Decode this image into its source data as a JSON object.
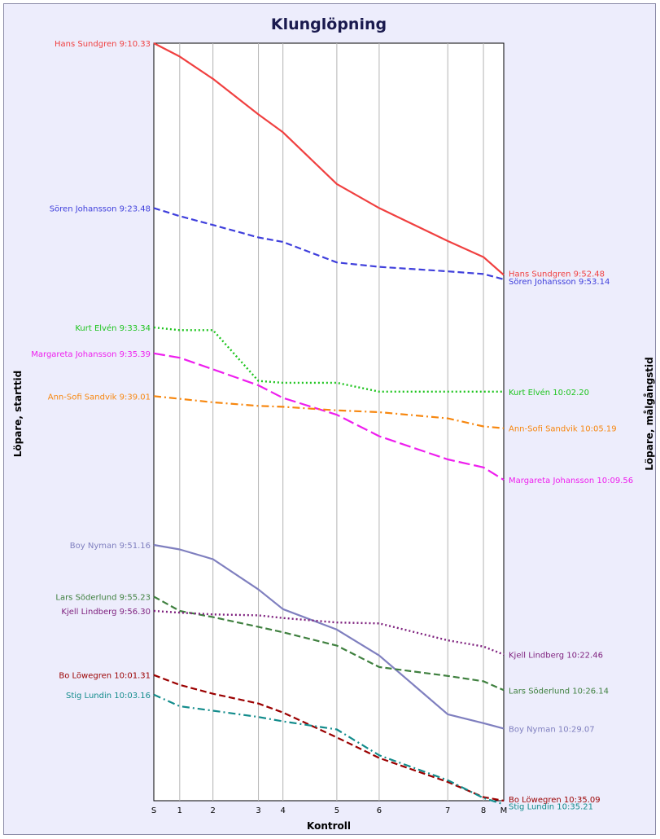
{
  "chart_data": {
    "type": "line",
    "title": "Klunglöpning",
    "xlabel": "Kontroll",
    "ylabel_left": "Löpare, starttid",
    "ylabel_right": "Löpare, målgångstid",
    "ylim_minutes_after_start_of_first": [
      0,
      85
    ],
    "grid": "vertical lines at each control",
    "controls": [
      {
        "label": "S",
        "pos": 0
      },
      {
        "label": "1",
        "pos": 0.074
      },
      {
        "label": "2",
        "pos": 0.169
      },
      {
        "label": "3",
        "pos": 0.299
      },
      {
        "label": "4",
        "pos": 0.369
      },
      {
        "label": "5",
        "pos": 0.523
      },
      {
        "label": "6",
        "pos": 0.644
      },
      {
        "label": "7",
        "pos": 0.84
      },
      {
        "label": "8",
        "pos": 0.942
      },
      {
        "label": "M",
        "pos": 1
      }
    ],
    "series": [
      {
        "name": "Hans Sundgren",
        "start_label": "Hans Sundgren 9:10.33",
        "finish_label": "Hans Sundgren 9:52.48",
        "color": "#f04040",
        "dash": "solid",
        "values": [
          0.0,
          1.5,
          4.0,
          8.0,
          10.0,
          15.8,
          18.5,
          22.2,
          24.0,
          26.0
        ]
      },
      {
        "name": "Sören Johansson",
        "start_label": "Sören Johansson 9:23.48",
        "finish_label": "Sören Johansson 9:53.14",
        "color": "#3f3fdc",
        "dash": "dash",
        "values": [
          18.5,
          19.4,
          20.4,
          21.8,
          22.3,
          24.6,
          25.1,
          25.6,
          25.9,
          26.5
        ]
      },
      {
        "name": "Kurt Elvén",
        "start_label": "Kurt Elvén 9:33.34",
        "finish_label": "Kurt Elvén 10:02.20",
        "color": "#1ec41e",
        "dash": "dot",
        "values": [
          31.9,
          32.2,
          32.2,
          37.9,
          38.1,
          38.1,
          39.1,
          39.1,
          39.1,
          39.1
        ]
      },
      {
        "name": "Margareta Johansson",
        "start_label": "Margareta Johansson 9:35.39",
        "finish_label": "Margareta Johansson 10:09.56",
        "color": "#ee1eee",
        "dash": "longdash",
        "values": [
          34.8,
          35.3,
          36.6,
          38.4,
          39.8,
          41.7,
          44.1,
          46.7,
          47.6,
          49.0
        ]
      },
      {
        "name": "Ann-Sofi Sandvik",
        "start_label": "Ann-Sofi Sandvik 9:39.01",
        "finish_label": "Ann-Sofi Sandvik 10:05.19",
        "color": "#f7870f",
        "dash": "dashdot",
        "values": [
          39.6,
          39.9,
          40.3,
          40.7,
          40.8,
          41.2,
          41.4,
          42.1,
          43.0,
          43.2
        ]
      },
      {
        "name": "Boy Nyman",
        "start_label": "Boy Nyman 9:51.16",
        "finish_label": "Boy Nyman 10:29.07",
        "color": "#7f7fbf",
        "dash": "solid",
        "values": [
          56.3,
          56.8,
          57.9,
          61.3,
          63.5,
          65.8,
          68.7,
          75.3,
          76.3,
          76.9
        ]
      },
      {
        "name": "Lars Söderlund",
        "start_label": "Lars Söderlund 9:55.23",
        "finish_label": "Lars Söderlund 10:26.14",
        "color": "#3f803f",
        "dash": "dash",
        "values": [
          62.1,
          63.7,
          64.4,
          65.5,
          66.1,
          67.6,
          70.0,
          71.0,
          71.6,
          72.6
        ]
      },
      {
        "name": "Kjell Lindberg",
        "start_label": "Kjell Lindberg 9:56.30",
        "finish_label": "Kjell Lindberg 10:22.46",
        "color": "#7f227f",
        "dash": "dot",
        "values": [
          63.7,
          63.9,
          64.1,
          64.2,
          64.5,
          65.0,
          65.1,
          67.0,
          67.7,
          68.6
        ]
      },
      {
        "name": "Bo Löwegren",
        "start_label": "Bo Löwegren 10:01.31",
        "finish_label": "Bo Löwegren 10:35.09",
        "color": "#9b0000",
        "dash": "dash",
        "values": [
          70.9,
          72.0,
          73.0,
          74.1,
          75.1,
          77.9,
          80.2,
          82.9,
          84.6,
          85.0
        ]
      },
      {
        "name": "Stig Lundin",
        "start_label": "Stig Lundin 10:03.16",
        "finish_label": "Stig Lundin 10:35.21",
        "color": "#138c8c",
        "dash": "dashdot",
        "values": [
          73.1,
          74.4,
          74.9,
          75.6,
          76.1,
          77.0,
          79.9,
          82.7,
          84.7,
          85.4
        ]
      }
    ]
  }
}
